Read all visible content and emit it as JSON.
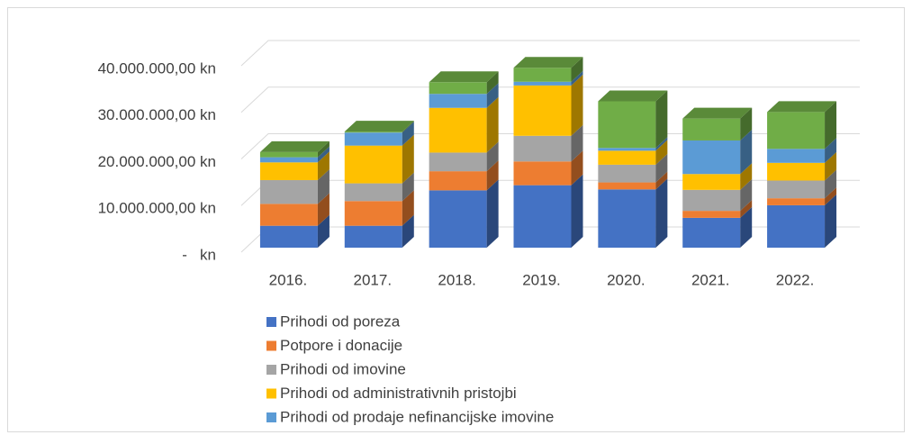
{
  "chart_data": {
    "type": "bar3d_stacked",
    "categories": [
      "2016.",
      "2017.",
      "2018.",
      "2019.",
      "2020.",
      "2021.",
      "2022."
    ],
    "series": [
      {
        "name": "Prihodi od poreza",
        "color": "#4472c4",
        "values": [
          4700000,
          4700000,
          12300000,
          13400000,
          12500000,
          6400000,
          9100000
        ]
      },
      {
        "name": "Potpore i donacije",
        "color": "#ed7d31",
        "values": [
          4700000,
          5300000,
          4100000,
          5100000,
          1500000,
          1500000,
          1500000
        ]
      },
      {
        "name": "Prihodi od imovine",
        "color": "#a5a5a5",
        "values": [
          5100000,
          3800000,
          4000000,
          5500000,
          3800000,
          4500000,
          3800000
        ]
      },
      {
        "name": "Prihodi od administrativnih pristojbi",
        "color": "#ffc000",
        "values": [
          3800000,
          8100000,
          9600000,
          10800000,
          3000000,
          3400000,
          3800000
        ]
      },
      {
        "name": "Prihodi od prodaje nefinancijske imovine",
        "color": "#5b9bd5",
        "values": [
          1100000,
          2800000,
          3000000,
          800000,
          600000,
          7200000,
          3000000
        ]
      },
      {
        "color": "#70ad47",
        "values": [
          1100000,
          200000,
          2500000,
          3000000,
          10000000,
          4700000,
          7900000
        ]
      }
    ],
    "ylim": [
      0,
      45000000
    ],
    "yticks": [
      {
        "value": 0,
        "label": "-   kn"
      },
      {
        "value": 10000000,
        "label": "10.000.000,00 kn"
      },
      {
        "value": 20000000,
        "label": "20.000.000,00 kn"
      },
      {
        "value": 30000000,
        "label": "30.000.000,00 kn"
      },
      {
        "value": 40000000,
        "label": "40.000.000,00 kn"
      }
    ],
    "grid": true
  }
}
